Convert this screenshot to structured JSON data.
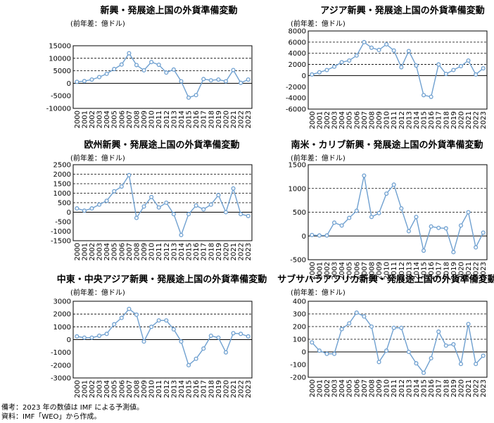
{
  "years": [
    "2000",
    "2001",
    "2002",
    "2003",
    "2004",
    "2005",
    "2006",
    "2007",
    "2008",
    "2009",
    "2010",
    "2011",
    "2012",
    "2013",
    "2014",
    "2015",
    "2016",
    "2017",
    "2018",
    "2019",
    "2020",
    "2021",
    "2022",
    "2023"
  ],
  "line_color": "#6fa0d0",
  "chart_data": [
    {
      "type": "line",
      "title": "新興・発展途上国の外貨準備変動",
      "ylabel": "(前年差：億ドル)",
      "ylim": [
        -10000,
        15000
      ],
      "yticks": [
        -10000,
        -5000,
        0,
        5000,
        10000,
        15000
      ],
      "gridlines": [
        5000,
        10000
      ],
      "values": [
        600,
        900,
        1500,
        2500,
        3800,
        5700,
        7500,
        12000,
        7300,
        5200,
        8500,
        7400,
        4300,
        5500,
        800,
        -5700,
        -4700,
        1700,
        1200,
        1500,
        800,
        5300,
        200,
        1500
      ]
    },
    {
      "type": "line",
      "title": "アジア新興・発展途上国の外貨準備変動",
      "ylabel": "(前年差：億ドル)",
      "ylim": [
        -6000,
        8000
      ],
      "yticks": [
        -6000,
        -4000,
        -2000,
        0,
        2000,
        4000,
        6000,
        8000
      ],
      "gridlines": [
        2000,
        4000,
        6000
      ],
      "values": [
        200,
        600,
        1000,
        1600,
        2400,
        2700,
        3600,
        6000,
        5000,
        4600,
        5600,
        4500,
        1500,
        4400,
        1800,
        -3500,
        -3800,
        2000,
        300,
        1000,
        1700,
        2700,
        200,
        1300
      ]
    },
    {
      "type": "line",
      "title": "欧州新興・発展途上国の外貨準備変動",
      "ylabel": "(前年差：億ドル)",
      "ylim": [
        -1500,
        2500
      ],
      "yticks": [
        -1500,
        -1000,
        -500,
        0,
        500,
        1000,
        1500,
        2000,
        2500
      ],
      "gridlines": [
        500,
        1000,
        1500,
        2000
      ],
      "values": [
        200,
        80,
        200,
        400,
        600,
        1100,
        1350,
        1950,
        -300,
        300,
        800,
        250,
        500,
        -100,
        -1200,
        -100,
        350,
        150,
        400,
        900,
        0,
        1250,
        -100,
        -200
      ]
    },
    {
      "type": "line",
      "title": "南米・カリブ新興・発展途上国の外貨準備変動",
      "ylabel": "(前年差：億ドル)",
      "ylim": [
        -500,
        1500
      ],
      "yticks": [
        -500,
        0,
        500,
        1000,
        1500
      ],
      "gridlines": [
        500,
        1000
      ],
      "values": [
        20,
        10,
        10,
        280,
        220,
        380,
        530,
        1270,
        400,
        480,
        890,
        1080,
        580,
        100,
        400,
        -310,
        200,
        170,
        160,
        -340,
        220,
        500,
        -240,
        70
      ]
    },
    {
      "type": "line",
      "title": "中東・中央アジア新興・発展途上国の外貨準備変動",
      "ylabel": "(前年差：億ドル)",
      "ylim": [
        -3000,
        3000
      ],
      "yticks": [
        -3000,
        -2000,
        -1000,
        0,
        1000,
        2000,
        3000
      ],
      "gridlines": [
        1000,
        2000
      ],
      "values": [
        250,
        150,
        150,
        300,
        450,
        1200,
        1700,
        2400,
        1950,
        -150,
        1000,
        1500,
        1500,
        800,
        -150,
        -2000,
        -1500,
        -700,
        300,
        150,
        -1000,
        500,
        450,
        250
      ]
    },
    {
      "type": "line",
      "title": "サブサハラアフリカ新興・発展途上国の外貨準備変動",
      "ylabel": "(前年差：億ドル)",
      "ylim": [
        -200,
        400
      ],
      "yticks": [
        -200,
        -100,
        0,
        100,
        200,
        300,
        400
      ],
      "gridlines": [
        100,
        200,
        300
      ],
      "values": [
        75,
        10,
        -15,
        -15,
        180,
        225,
        310,
        280,
        200,
        -80,
        10,
        190,
        190,
        0,
        -90,
        -165,
        -50,
        160,
        50,
        60,
        -95,
        220,
        -95,
        -30
      ]
    }
  ],
  "notes": {
    "line1": "備考：2023 年の数値は IMF による予測値。",
    "line2": "資料：IMF「WEO」から作成。"
  }
}
